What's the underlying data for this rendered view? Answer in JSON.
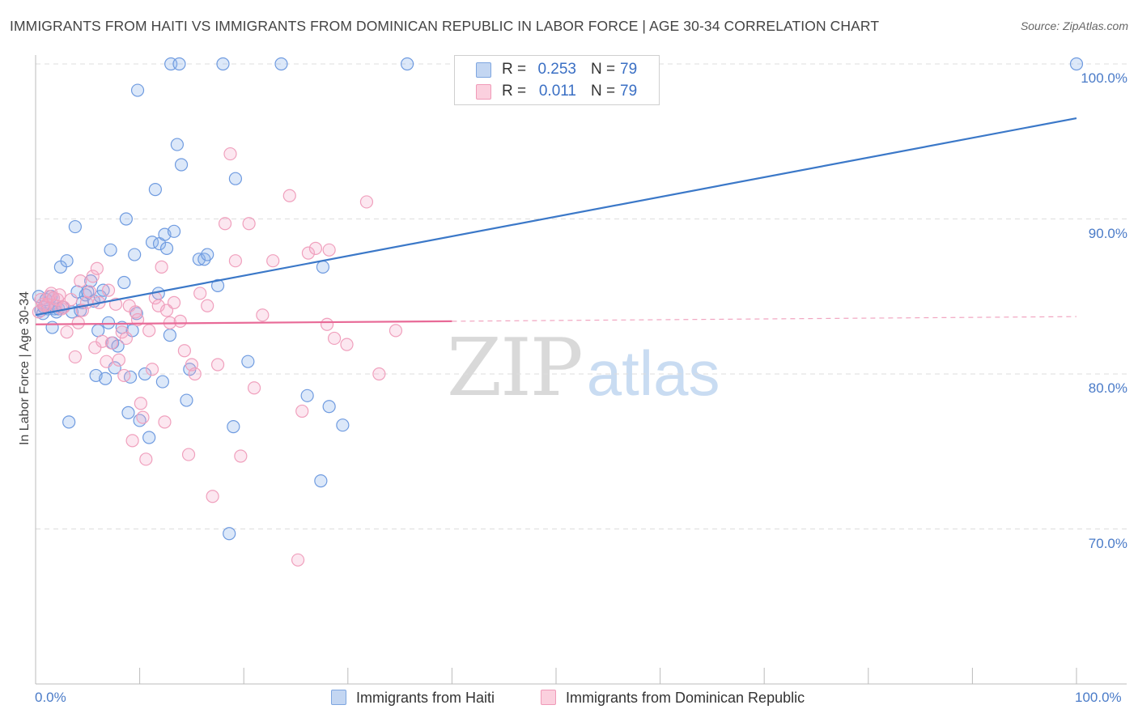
{
  "title": "IMMIGRANTS FROM HAITI VS IMMIGRANTS FROM DOMINICAN REPUBLIC IN LABOR FORCE | AGE 30-34 CORRELATION CHART",
  "source": "Source: ZipAtlas.com",
  "watermark": {
    "zip": "ZIP",
    "atlas": "atlas"
  },
  "legend": {
    "rows": [
      {
        "r_label": "R =",
        "r_value": "0.253",
        "n_label": "N =",
        "n_value": "79",
        "color": "#7ea6e0",
        "fill": "#c3d6f2"
      },
      {
        "r_label": "R =",
        "r_value": "0.011",
        "n_label": "N =",
        "n_value": "79",
        "color": "#f09ab8",
        "fill": "#fbd0de"
      }
    ]
  },
  "colors": {
    "haiti_stroke": "#6f9be0",
    "haiti_fill": "rgba(140,180,235,0.30)",
    "haiti_line": "#3b78c8",
    "dr_stroke": "#f0a0bd",
    "dr_fill": "rgba(245,170,200,0.28)",
    "dr_line": "#e86a97",
    "tick_text": "#4a7bc8",
    "grid": "#dddddd"
  },
  "chart_data": {
    "type": "scatter",
    "title": "IMMIGRANTS FROM HAITI VS IMMIGRANTS FROM DOMINICAN REPUBLIC IN LABOR FORCE | AGE 30-34 CORRELATION CHART",
    "xlabel": "",
    "ylabel": "In Labor Force | Age 30-34",
    "xlim": [
      0,
      100
    ],
    "ylim": [
      59.5,
      102.5
    ],
    "x_ticks": [
      "0.0%",
      "100.0%"
    ],
    "y_ticks": [
      {
        "value": 100,
        "label": "100.0%"
      },
      {
        "value": 90,
        "label": "90.0%"
      },
      {
        "value": 80,
        "label": "80.0%"
      },
      {
        "value": 70,
        "label": "70.0%"
      }
    ],
    "grid": true,
    "legend_position": "top-center",
    "series": [
      {
        "name": "Immigrants from Haiti",
        "trend": {
          "x": [
            0,
            100
          ],
          "y": [
            83.8,
            96.5
          ],
          "dashed_from": null
        },
        "points": [
          [
            0.3,
            85.0
          ],
          [
            0.5,
            84.1
          ],
          [
            0.7,
            83.9
          ],
          [
            0.8,
            84.3
          ],
          [
            1.0,
            84.8
          ],
          [
            1.2,
            84.2
          ],
          [
            1.5,
            85.0
          ],
          [
            1.6,
            83.0
          ],
          [
            1.7,
            84.9
          ],
          [
            1.8,
            84.2
          ],
          [
            2.0,
            84.0
          ],
          [
            2.2,
            84.2
          ],
          [
            2.4,
            86.9
          ],
          [
            2.6,
            84.3
          ],
          [
            3.0,
            87.3
          ],
          [
            3.2,
            76.9
          ],
          [
            3.5,
            84.0
          ],
          [
            3.8,
            89.5
          ],
          [
            4.0,
            85.3
          ],
          [
            4.3,
            84.1
          ],
          [
            4.5,
            84.6
          ],
          [
            4.8,
            85.1
          ],
          [
            5.0,
            85.3
          ],
          [
            5.3,
            86.0
          ],
          [
            5.6,
            84.7
          ],
          [
            5.8,
            79.9
          ],
          [
            6.0,
            82.8
          ],
          [
            6.2,
            85.0
          ],
          [
            6.5,
            85.4
          ],
          [
            6.7,
            79.7
          ],
          [
            7.0,
            83.3
          ],
          [
            7.2,
            88.0
          ],
          [
            7.4,
            82.0
          ],
          [
            7.6,
            80.4
          ],
          [
            7.9,
            81.8
          ],
          [
            8.3,
            83.0
          ],
          [
            8.5,
            85.9
          ],
          [
            8.7,
            90.0
          ],
          [
            8.9,
            77.5
          ],
          [
            9.1,
            79.8
          ],
          [
            9.3,
            82.8
          ],
          [
            9.5,
            87.7
          ],
          [
            9.7,
            83.9
          ],
          [
            9.8,
            98.3
          ],
          [
            10.0,
            77.0
          ],
          [
            10.5,
            80.0
          ],
          [
            10.9,
            75.9
          ],
          [
            11.2,
            88.5
          ],
          [
            11.5,
            91.9
          ],
          [
            11.9,
            88.4
          ],
          [
            12.2,
            79.5
          ],
          [
            12.4,
            89.0
          ],
          [
            12.6,
            88.1
          ],
          [
            12.9,
            82.5
          ],
          [
            13.0,
            100.0
          ],
          [
            13.3,
            89.2
          ],
          [
            13.6,
            94.8
          ],
          [
            13.8,
            100.0
          ],
          [
            14.0,
            93.5
          ],
          [
            14.5,
            78.3
          ],
          [
            14.8,
            80.3
          ],
          [
            15.7,
            87.4
          ],
          [
            16.2,
            87.4
          ],
          [
            16.5,
            87.7
          ],
          [
            17.5,
            85.7
          ],
          [
            18.0,
            100.0
          ],
          [
            18.6,
            69.7
          ],
          [
            19.0,
            76.6
          ],
          [
            19.2,
            92.6
          ],
          [
            20.4,
            80.8
          ],
          [
            23.6,
            100.0
          ],
          [
            26.1,
            78.6
          ],
          [
            27.4,
            73.1
          ],
          [
            27.6,
            86.9
          ],
          [
            28.2,
            77.9
          ],
          [
            29.5,
            76.7
          ],
          [
            35.7,
            100.0
          ],
          [
            11.8,
            85.2
          ],
          [
            100.0,
            100.0
          ]
        ]
      },
      {
        "name": "Immigrants from Dominican Republic",
        "trend": {
          "x": [
            0,
            100
          ],
          "y": [
            83.2,
            83.7
          ],
          "dashed_from": 40
        },
        "points": [
          [
            0.3,
            84.0
          ],
          [
            0.5,
            84.8
          ],
          [
            0.7,
            84.5
          ],
          [
            0.9,
            84.4
          ],
          [
            1.1,
            84.5
          ],
          [
            1.3,
            85.0
          ],
          [
            1.5,
            85.2
          ],
          [
            1.7,
            84.9
          ],
          [
            1.9,
            84.4
          ],
          [
            2.1,
            84.8
          ],
          [
            2.3,
            85.1
          ],
          [
            2.5,
            84.2
          ],
          [
            2.7,
            84.3
          ],
          [
            3.0,
            82.7
          ],
          [
            3.4,
            84.8
          ],
          [
            3.8,
            81.1
          ],
          [
            4.1,
            83.3
          ],
          [
            4.3,
            86.0
          ],
          [
            4.5,
            84.1
          ],
          [
            4.9,
            84.6
          ],
          [
            5.2,
            85.3
          ],
          [
            5.5,
            86.3
          ],
          [
            5.7,
            81.7
          ],
          [
            5.9,
            86.8
          ],
          [
            6.1,
            84.6
          ],
          [
            6.4,
            82.1
          ],
          [
            6.8,
            80.8
          ],
          [
            7.0,
            85.4
          ],
          [
            7.3,
            82.0
          ],
          [
            7.7,
            84.5
          ],
          [
            8.0,
            80.9
          ],
          [
            8.3,
            82.7
          ],
          [
            8.5,
            79.9
          ],
          [
            8.7,
            82.3
          ],
          [
            9.0,
            84.4
          ],
          [
            9.3,
            75.7
          ],
          [
            9.6,
            84.0
          ],
          [
            9.8,
            83.5
          ],
          [
            10.1,
            78.1
          ],
          [
            10.3,
            77.2
          ],
          [
            10.6,
            74.5
          ],
          [
            10.9,
            82.8
          ],
          [
            11.2,
            80.3
          ],
          [
            11.5,
            84.9
          ],
          [
            11.8,
            84.4
          ],
          [
            12.1,
            86.9
          ],
          [
            12.4,
            76.9
          ],
          [
            12.6,
            84.1
          ],
          [
            12.9,
            83.3
          ],
          [
            13.3,
            84.6
          ],
          [
            13.9,
            83.4
          ],
          [
            14.3,
            81.5
          ],
          [
            14.7,
            74.8
          ],
          [
            15.0,
            80.6
          ],
          [
            15.3,
            80.0
          ],
          [
            15.8,
            85.2
          ],
          [
            16.5,
            84.4
          ],
          [
            17.0,
            72.1
          ],
          [
            17.5,
            80.6
          ],
          [
            18.2,
            89.7
          ],
          [
            18.7,
            94.2
          ],
          [
            19.2,
            87.3
          ],
          [
            19.7,
            74.7
          ],
          [
            20.5,
            89.7
          ],
          [
            21.0,
            79.1
          ],
          [
            21.8,
            83.8
          ],
          [
            22.8,
            87.3
          ],
          [
            24.4,
            91.5
          ],
          [
            25.2,
            68.0
          ],
          [
            25.6,
            77.6
          ],
          [
            26.2,
            87.8
          ],
          [
            26.9,
            88.1
          ],
          [
            28.0,
            83.2
          ],
          [
            28.2,
            88.0
          ],
          [
            28.7,
            82.3
          ],
          [
            29.9,
            81.9
          ],
          [
            31.8,
            91.1
          ],
          [
            33.0,
            80.0
          ],
          [
            34.6,
            82.8
          ]
        ]
      }
    ]
  },
  "bottom_legend": [
    {
      "label": "Immigrants from Haiti",
      "fill": "#c3d6f2",
      "stroke": "#7ea6e0"
    },
    {
      "label": "Immigrants from Dominican Republic",
      "fill": "#fbd0de",
      "stroke": "#f09ab8"
    }
  ]
}
